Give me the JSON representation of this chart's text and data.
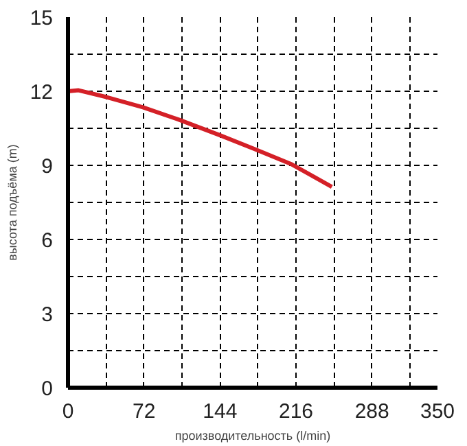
{
  "chart_data": {
    "type": "line",
    "xlabel": "производительность (l/min)",
    "ylabel": "высота подъёма (m)",
    "x": [
      0,
      10,
      36,
      71,
      105,
      144,
      178,
      212,
      250
    ],
    "series": [
      {
        "color": "#d42027",
        "values": [
          12.0,
          12.04,
          11.77,
          11.35,
          10.85,
          10.22,
          9.64,
          9.04,
          8.13
        ]
      }
    ],
    "xlim": [
      0,
      350
    ],
    "ylim": [
      0,
      15
    ],
    "xticks": [
      0,
      {
        "value": 36,
        "label": null
      },
      72,
      {
        "value": 108,
        "label": null
      },
      144,
      {
        "value": 180,
        "label": null
      },
      216,
      {
        "value": 252,
        "label": null
      },
      288,
      {
        "value": 324,
        "label": null
      },
      350
    ],
    "yticks": [
      0,
      {
        "value": 1.5,
        "label": null
      },
      3,
      {
        "value": 4.5,
        "label": null
      },
      6,
      {
        "value": 7.5,
        "label": null
      },
      9,
      {
        "value": 10.5,
        "label": null
      },
      12,
      {
        "value": 13.5,
        "label": null
      },
      15
    ],
    "grid": true,
    "line_style": "solid",
    "marker": "none"
  }
}
